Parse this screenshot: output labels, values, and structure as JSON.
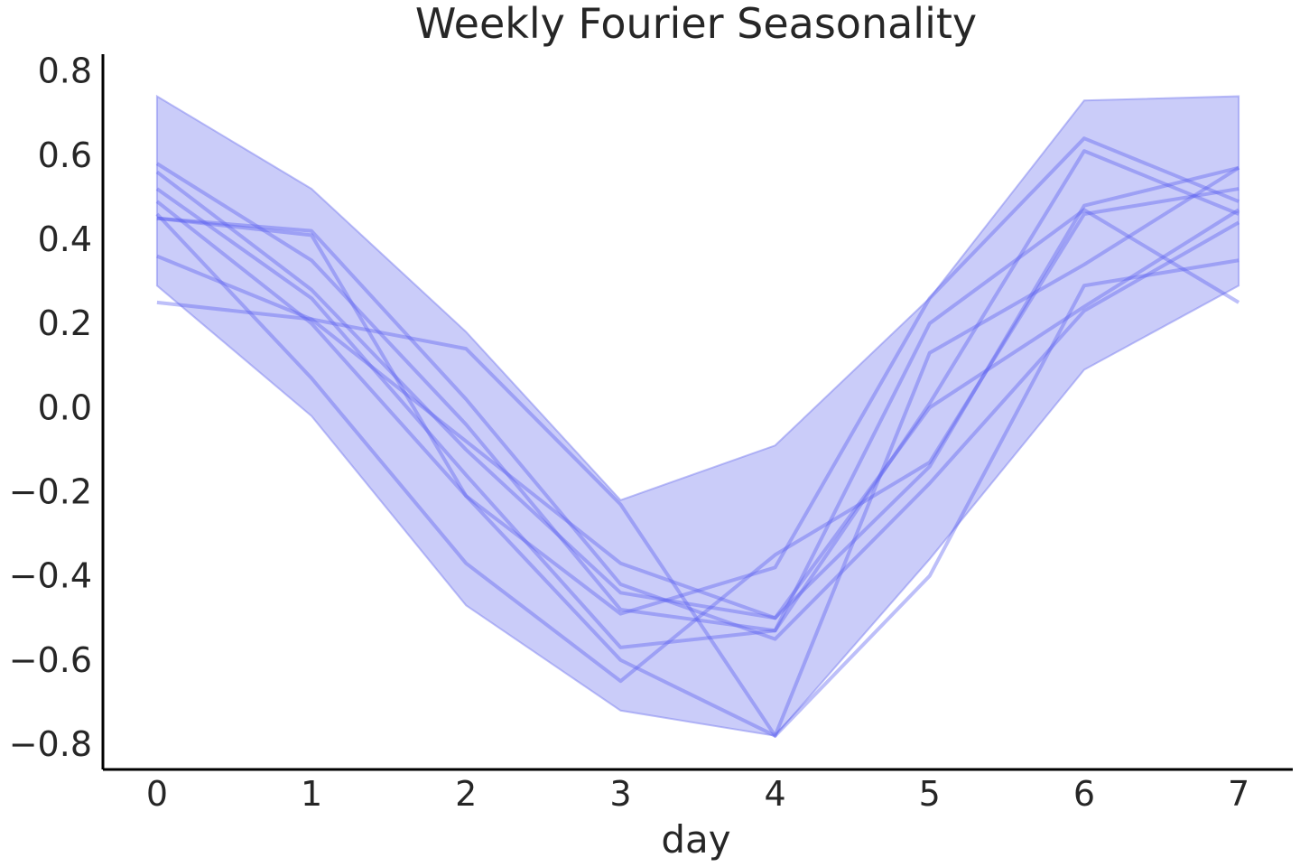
{
  "chart_data": {
    "type": "line",
    "title": "Weekly Fourier Seasonality",
    "xlabel": "day",
    "ylabel": "",
    "xlim": [
      -0.35,
      7.35
    ],
    "ylim": [
      -0.86,
      0.84
    ],
    "x": [
      0,
      1,
      2,
      3,
      4,
      5,
      6,
      7
    ],
    "x_ticks": [
      0,
      1,
      2,
      3,
      4,
      5,
      6,
      7
    ],
    "x_tick_labels": [
      "0",
      "1",
      "2",
      "3",
      "4",
      "5",
      "6",
      "7"
    ],
    "y_ticks": [
      -0.8,
      -0.6,
      -0.4,
      -0.2,
      0.0,
      0.2,
      0.4,
      0.6,
      0.8
    ],
    "y_tick_labels": [
      "−0.8",
      "−0.6",
      "−0.4",
      "−0.2",
      "0.0",
      "0.2",
      "0.4",
      "0.6",
      "0.8"
    ],
    "grid": false,
    "band": {
      "upper": [
        0.74,
        0.52,
        0.18,
        -0.22,
        -0.09,
        0.26,
        0.73,
        0.74
      ],
      "lower": [
        0.29,
        -0.02,
        -0.47,
        -0.72,
        -0.78,
        -0.36,
        0.09,
        0.29
      ],
      "color": "#7b7ff0",
      "opacity": 0.4
    },
    "line_color": "#5b5ff0",
    "line_opacity": 0.4,
    "series": [
      {
        "values": [
          0.25,
          0.21,
          0.14,
          -0.23,
          -0.78,
          -0.4,
          0.29,
          0.35
        ]
      },
      {
        "values": [
          0.58,
          0.35,
          -0.04,
          -0.48,
          -0.53,
          0.2,
          0.47,
          0.25
        ]
      },
      {
        "values": [
          0.56,
          0.28,
          -0.1,
          -0.44,
          -0.5,
          0.0,
          0.24,
          0.47
        ]
      },
      {
        "values": [
          0.52,
          0.26,
          -0.16,
          -0.57,
          -0.53,
          0.01,
          0.61,
          0.46
        ]
      },
      {
        "values": [
          0.49,
          0.2,
          -0.21,
          -0.6,
          -0.78,
          0.13,
          0.34,
          0.57
        ]
      },
      {
        "values": [
          0.46,
          0.07,
          -0.37,
          -0.65,
          -0.35,
          -0.13,
          0.46,
          0.52
        ]
      },
      {
        "values": [
          0.45,
          0.42,
          0.02,
          -0.42,
          -0.55,
          -0.18,
          0.23,
          0.44
        ]
      },
      {
        "values": [
          0.45,
          0.41,
          -0.21,
          -0.49,
          -0.38,
          0.26,
          0.64,
          0.49
        ]
      },
      {
        "values": [
          0.36,
          0.21,
          -0.08,
          -0.37,
          -0.5,
          -0.14,
          0.48,
          0.57
        ]
      }
    ]
  }
}
